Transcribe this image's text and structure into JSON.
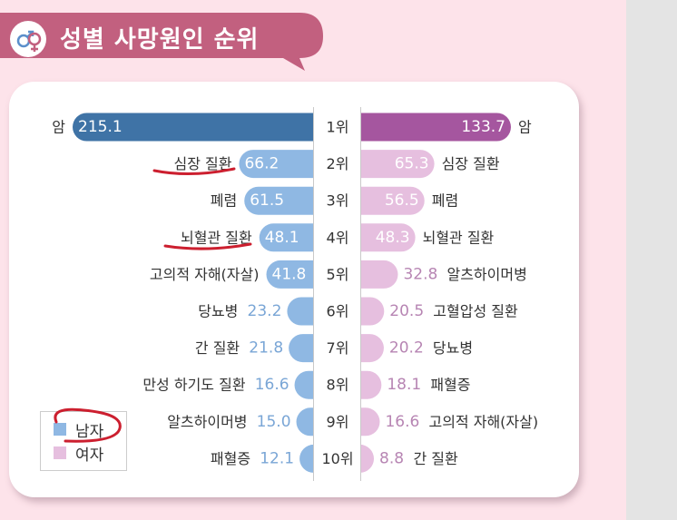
{
  "header": {
    "title": "성별 사망원인 순위",
    "icon": "gender-symbol-icon"
  },
  "colors": {
    "male_bar": "#8fb8e3",
    "male_top_bar": "#3f73a6",
    "female_bar": "#e6bfdf",
    "female_top_bar": "#a5569f",
    "male_value_text": "#7aa6d6",
    "female_value_text": "#b785b3",
    "annotation": "#cc1f2f",
    "title_ribbon": "#c2607f"
  },
  "legend": {
    "male": "남자",
    "female": "여자"
  },
  "chart_data": {
    "type": "bar",
    "ranks": [
      "1위",
      "2위",
      "3위",
      "4위",
      "5위",
      "6위",
      "7위",
      "8위",
      "9위",
      "10위"
    ],
    "series": [
      {
        "name": "남자",
        "categories": [
          "암",
          "심장 질환",
          "폐렴",
          "뇌혈관 질환",
          "고의적 자해(자살)",
          "당뇨병",
          "간 질환",
          "만성 하기도 질환",
          "알츠하이머병",
          "패혈증"
        ],
        "values": [
          215.1,
          66.2,
          61.5,
          48.1,
          41.8,
          23.2,
          21.8,
          16.6,
          15.0,
          12.1
        ],
        "labels": [
          "215.1",
          "66.2",
          "61.5",
          "48.1",
          "41.8",
          "23.2",
          "21.8",
          "16.6",
          "15.0",
          "12.1"
        ]
      },
      {
        "name": "여자",
        "categories": [
          "암",
          "심장 질환",
          "폐렴",
          "뇌혈관 질환",
          "알츠하이머병",
          "고혈압성 질환",
          "당뇨병",
          "패혈증",
          "고의적 자해(자살)",
          "간 질환"
        ],
        "values": [
          133.7,
          65.3,
          56.5,
          48.3,
          32.8,
          20.5,
          20.2,
          18.1,
          16.6,
          8.8
        ],
        "labels": [
          "133.7",
          "65.3",
          "56.5",
          "48.3",
          "32.8",
          "20.5",
          "20.2",
          "18.1",
          "16.6",
          "8.8"
        ]
      }
    ],
    "annotated_male_categories": [
      "심장 질환",
      "뇌혈관 질환"
    ]
  }
}
